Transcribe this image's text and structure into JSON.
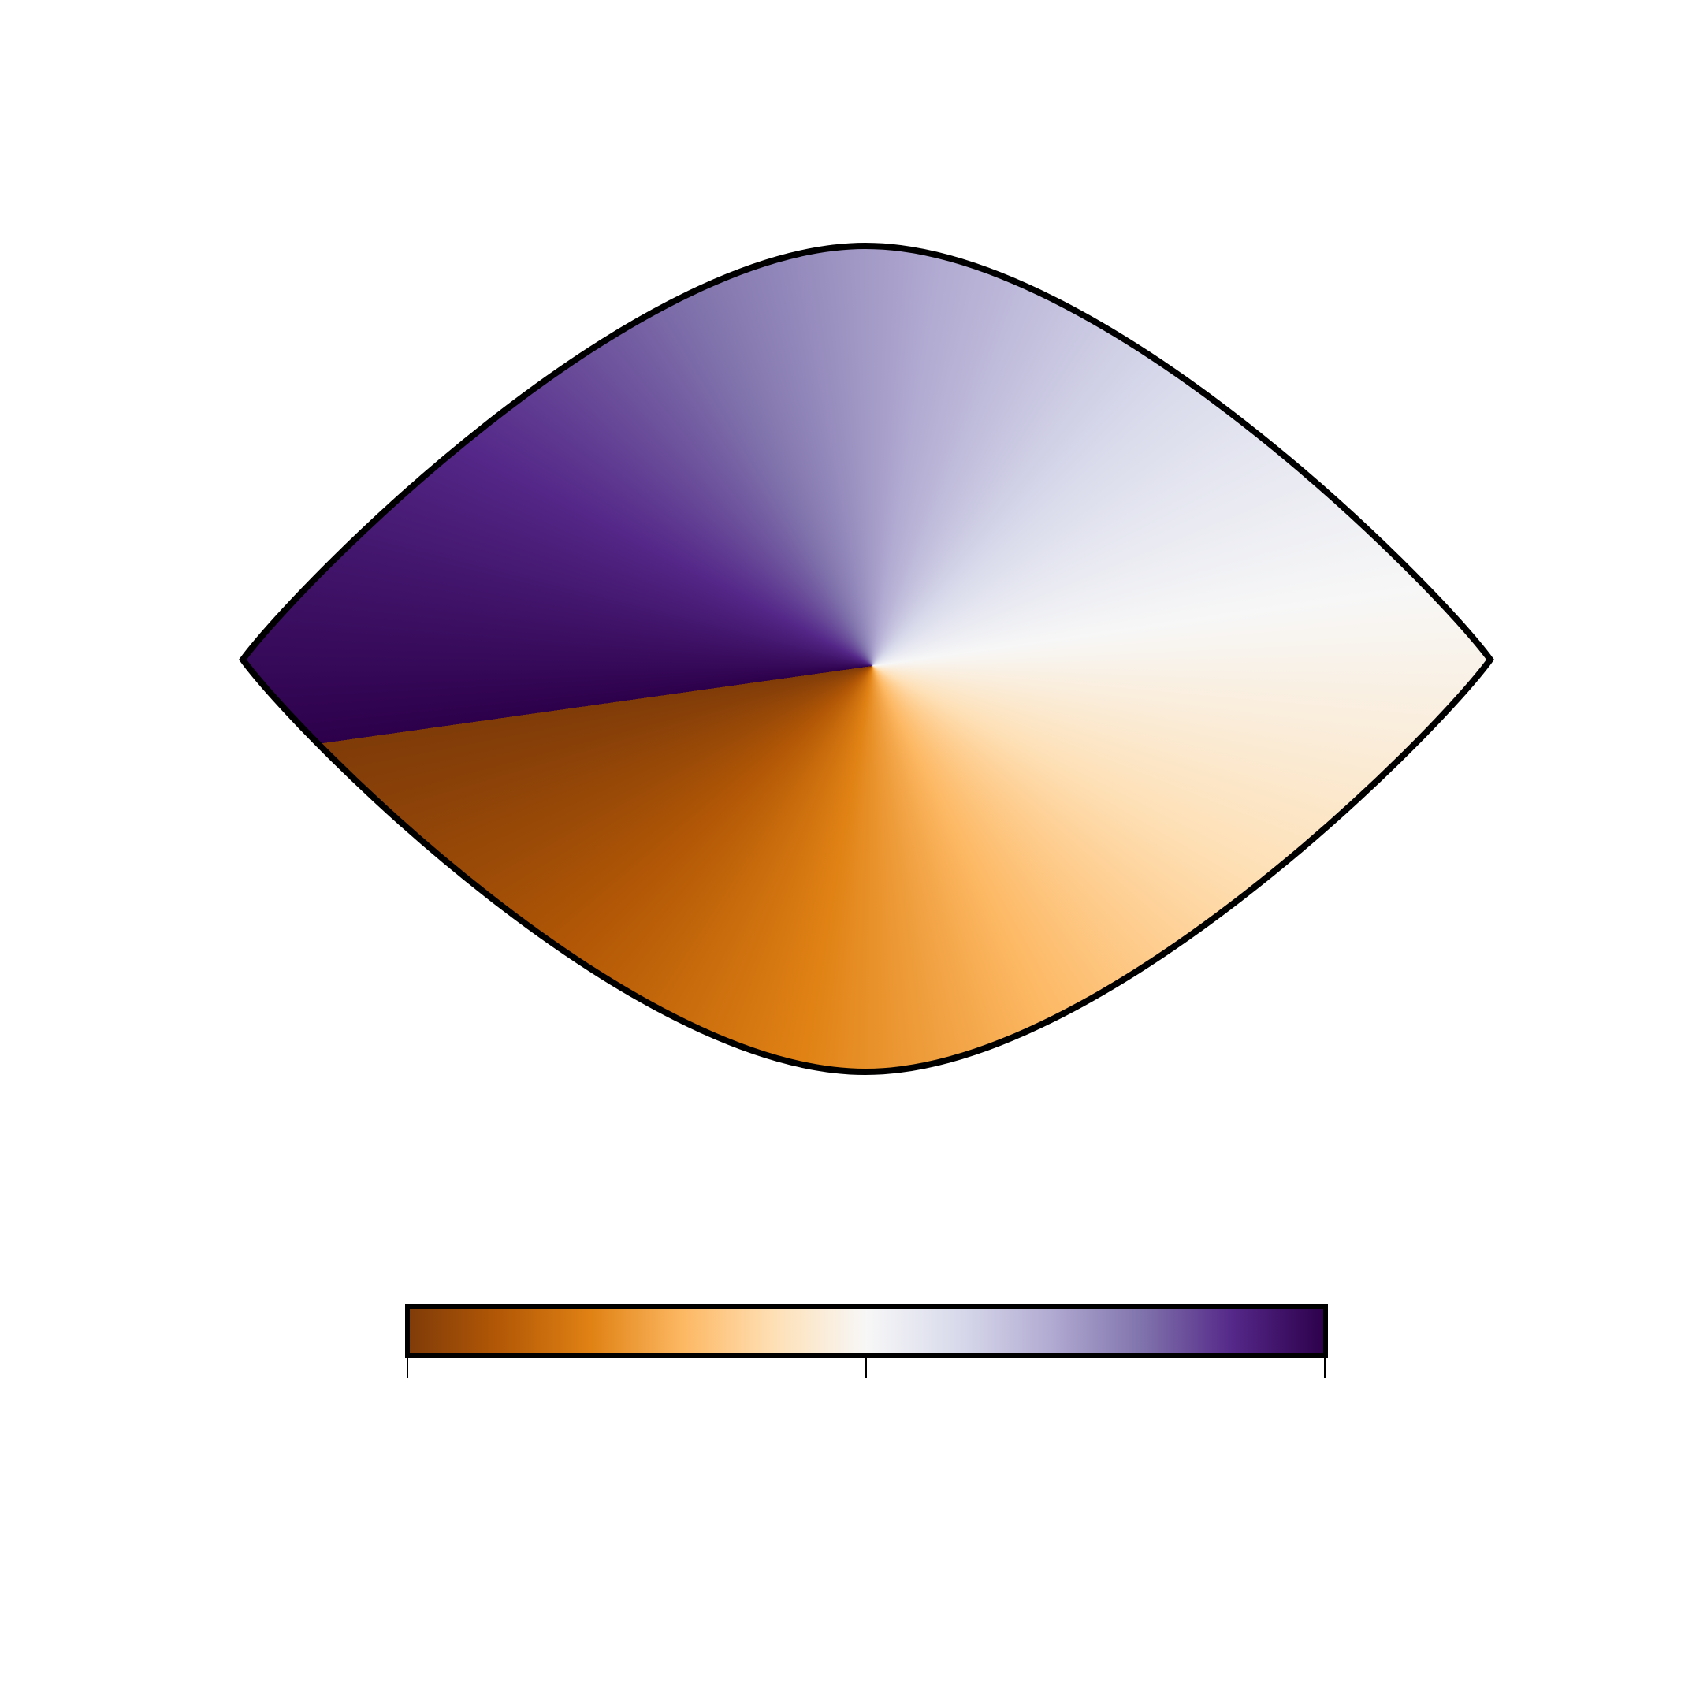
{
  "chart_data": {
    "type": "heatmap",
    "colormap": [
      "#7f3b08",
      "#b35806",
      "#e08214",
      "#fdb863",
      "#fee0b6",
      "#f7f7f7",
      "#d8daeb",
      "#b2abd2",
      "#8073ac",
      "#542788",
      "#2d004b"
    ]
  }
}
